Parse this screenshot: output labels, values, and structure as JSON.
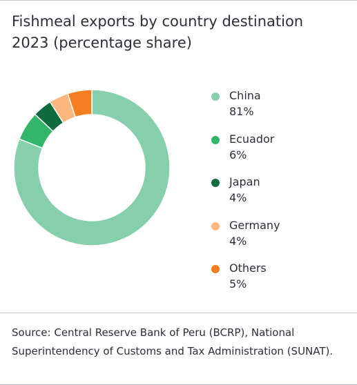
{
  "chart_data": {
    "type": "pie",
    "variant": "donut",
    "title": "Fishmeal exports by country destination 2023 (percentage share)",
    "legend_position": "right",
    "slices": [
      {
        "label": "China",
        "value": 81,
        "display": "81%",
        "color": "#86cfab"
      },
      {
        "label": "Ecuador",
        "value": 6,
        "display": "6%",
        "color": "#33b56a"
      },
      {
        "label": "Japan",
        "value": 4,
        "display": "4%",
        "color": "#0f6b3d"
      },
      {
        "label": "Germany",
        "value": 4,
        "display": "4%",
        "color": "#fbb77e"
      },
      {
        "label": "Others",
        "value": 5,
        "display": "5%",
        "color": "#f27e1f"
      }
    ]
  },
  "source": "Source: Central Reserve Bank of Peru (BCRP), National Superintendency of Customs and Tax Administration (SUNAT)."
}
